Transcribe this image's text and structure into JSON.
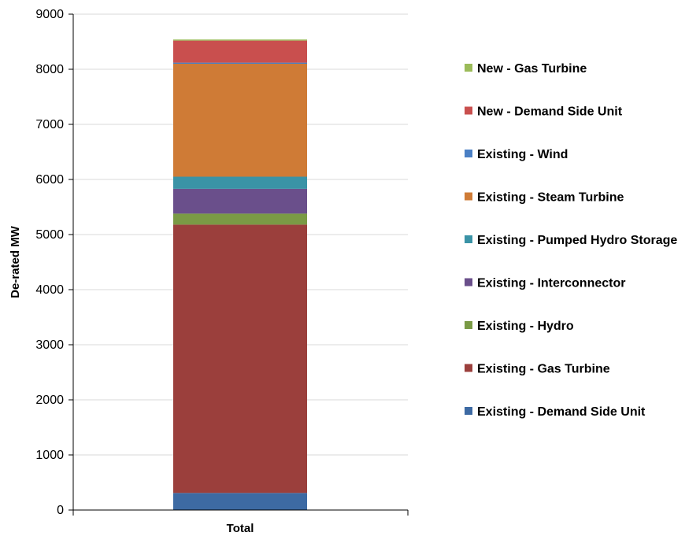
{
  "chart_data": {
    "type": "bar",
    "stacked": true,
    "categories": [
      "Total"
    ],
    "ylabel": "De-rated MW",
    "xlabel": "",
    "ylim": [
      0,
      9000
    ],
    "yticks": [
      0,
      1000,
      2000,
      3000,
      4000,
      5000,
      6000,
      7000,
      8000,
      9000
    ],
    "grid": true,
    "legend_position": "right",
    "series": [
      {
        "name": "Existing - Demand Side Unit",
        "values": [
          310
        ],
        "color": "#3d6aa3"
      },
      {
        "name": "Existing - Gas Turbine",
        "values": [
          4870
        ],
        "color": "#9b3f3c"
      },
      {
        "name": "Existing - Hydro",
        "values": [
          200
        ],
        "color": "#7a9a45"
      },
      {
        "name": "Existing - Interconnector",
        "values": [
          450
        ],
        "color": "#6a4f8b"
      },
      {
        "name": "Existing - Pumped Hydro Storage",
        "values": [
          220
        ],
        "color": "#3a93a6"
      },
      {
        "name": "Existing - Steam Turbine",
        "values": [
          2050
        ],
        "color": "#cf7b36"
      },
      {
        "name": "Existing - Wind",
        "values": [
          20
        ],
        "color": "#4a7fc4"
      },
      {
        "name": "New - Demand Side Unit",
        "values": [
          400
        ],
        "color": "#c94f4e"
      },
      {
        "name": "New - Gas Turbine",
        "values": [
          20
        ],
        "color": "#9bbb59"
      }
    ]
  }
}
